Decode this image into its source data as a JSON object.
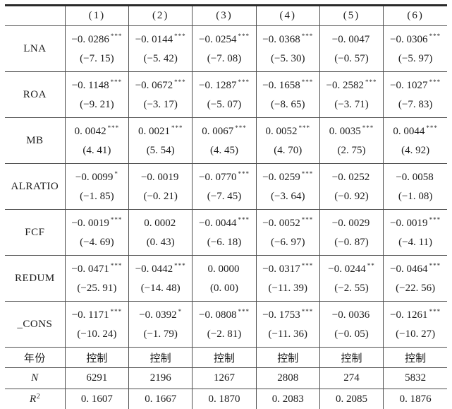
{
  "table": {
    "col_headers": [
      "",
      "(1)",
      "(2)",
      "(3)",
      "(4)",
      "(5)",
      "(6)"
    ],
    "coef_rows": [
      {
        "label": "LNA",
        "cells": [
          {
            "coef": "−0. 0286",
            "stars": "***",
            "t": "(−7. 15)"
          },
          {
            "coef": "−0. 0144",
            "stars": "***",
            "t": "(−5. 42)"
          },
          {
            "coef": "−0. 0254",
            "stars": "***",
            "t": "(−7. 08)"
          },
          {
            "coef": "−0. 0368",
            "stars": "***",
            "t": "(−5. 30)"
          },
          {
            "coef": "−0. 0047",
            "stars": "",
            "t": "(−0. 57)"
          },
          {
            "coef": "−0. 0306",
            "stars": "***",
            "t": "(−5. 97)"
          }
        ]
      },
      {
        "label": "ROA",
        "cells": [
          {
            "coef": "−0. 1148",
            "stars": "***",
            "t": "(−9. 21)"
          },
          {
            "coef": "−0. 0672",
            "stars": "***",
            "t": "(−3. 17)"
          },
          {
            "coef": "−0. 1287",
            "stars": "***",
            "t": "(−5. 07)"
          },
          {
            "coef": "−0. 1658",
            "stars": "***",
            "t": "(−8. 65)"
          },
          {
            "coef": "−0. 2582",
            "stars": "***",
            "t": "(−3. 71)"
          },
          {
            "coef": "−0. 1027",
            "stars": "***",
            "t": "(−7. 83)"
          }
        ]
      },
      {
        "label": "MB",
        "cells": [
          {
            "coef": "0. 0042",
            "stars": "***",
            "t": "(4. 41)"
          },
          {
            "coef": "0. 0021",
            "stars": "***",
            "t": "(5. 54)"
          },
          {
            "coef": "0. 0067",
            "stars": "***",
            "t": "(4. 45)"
          },
          {
            "coef": "0. 0052",
            "stars": "***",
            "t": "(4. 70)"
          },
          {
            "coef": "0. 0035",
            "stars": "***",
            "t": "(2. 75)"
          },
          {
            "coef": "0. 0044",
            "stars": "***",
            "t": "(4. 92)"
          }
        ]
      },
      {
        "label": "ALRATIO",
        "cells": [
          {
            "coef": "−0. 0099",
            "stars": "*",
            "t": "(−1. 85)"
          },
          {
            "coef": "−0. 0019",
            "stars": "",
            "t": "(−0. 21)"
          },
          {
            "coef": "−0. 0770",
            "stars": "***",
            "t": "(−7. 45)"
          },
          {
            "coef": "−0. 0259",
            "stars": "***",
            "t": "(−3. 64)"
          },
          {
            "coef": "−0. 0252",
            "stars": "",
            "t": "(−0. 92)"
          },
          {
            "coef": "−0. 0058",
            "stars": "",
            "t": "(−1. 08)"
          }
        ]
      },
      {
        "label": "FCF",
        "cells": [
          {
            "coef": "−0. 0019",
            "stars": "***",
            "t": "(−4. 69)"
          },
          {
            "coef": "0. 0002",
            "stars": "",
            "t": "(0. 43)"
          },
          {
            "coef": "−0. 0044",
            "stars": "***",
            "t": "(−6. 18)"
          },
          {
            "coef": "−0. 0052",
            "stars": "***",
            "t": "(−6. 97)"
          },
          {
            "coef": "−0. 0029",
            "stars": "",
            "t": "(−0. 87)"
          },
          {
            "coef": "−0. 0019",
            "stars": "***",
            "t": "(−4. 11)"
          }
        ]
      },
      {
        "label": "REDUM",
        "cells": [
          {
            "coef": "−0. 0471",
            "stars": "***",
            "t": "(−25. 91)"
          },
          {
            "coef": "−0. 0442",
            "stars": "***",
            "t": "(−14. 48)"
          },
          {
            "coef": "0. 0000",
            "stars": "",
            "t": "(0. 00)"
          },
          {
            "coef": "−0. 0317",
            "stars": "***",
            "t": "(−11. 39)"
          },
          {
            "coef": "−0. 0244",
            "stars": "**",
            "t": "(−2. 55)"
          },
          {
            "coef": "−0. 0464",
            "stars": "***",
            "t": "(−22. 56)"
          }
        ]
      },
      {
        "label": "_CONS",
        "cells": [
          {
            "coef": "−0. 1171",
            "stars": "***",
            "t": "(−10. 24)"
          },
          {
            "coef": "−0. 0392",
            "stars": "*",
            "t": "(−1. 79)"
          },
          {
            "coef": "−0. 0808",
            "stars": "***",
            "t": "(−2. 81)"
          },
          {
            "coef": "−0. 1753",
            "stars": "***",
            "t": "(−11. 36)"
          },
          {
            "coef": "−0. 0036",
            "stars": "",
            "t": "(−0. 05)"
          },
          {
            "coef": "−0. 1261",
            "stars": "***",
            "t": "(−10. 27)"
          }
        ]
      }
    ],
    "meta_rows": [
      {
        "label": "年份",
        "italic": false,
        "label_sup": "",
        "cells": [
          "控制",
          "控制",
          "控制",
          "控制",
          "控制",
          "控制"
        ]
      },
      {
        "label": "N",
        "italic": true,
        "label_sup": "",
        "cells": [
          "6291",
          "2196",
          "1267",
          "2808",
          "274",
          "5832"
        ]
      },
      {
        "label": "R",
        "italic": true,
        "label_sup": "2",
        "cells": [
          "0. 1607",
          "0. 1667",
          "0. 1870",
          "0. 2083",
          "0. 2085",
          "0. 1876"
        ]
      }
    ]
  },
  "chart_data": {
    "type": "table",
    "title": "",
    "columns": [
      "(1)",
      "(2)",
      "(3)",
      "(4)",
      "(5)",
      "(6)"
    ],
    "rows": {
      "LNA_coef": [
        -0.0286,
        -0.0144,
        -0.0254,
        -0.0368,
        -0.0047,
        -0.0306
      ],
      "LNA_t": [
        -7.15,
        -5.42,
        -7.08,
        -5.3,
        -0.57,
        -5.97
      ],
      "ROA_coef": [
        -0.1148,
        -0.0672,
        -0.1287,
        -0.1658,
        -0.2582,
        -0.1027
      ],
      "ROA_t": [
        -9.21,
        -3.17,
        -5.07,
        -8.65,
        -3.71,
        -7.83
      ],
      "MB_coef": [
        0.0042,
        0.0021,
        0.0067,
        0.0052,
        0.0035,
        0.0044
      ],
      "MB_t": [
        4.41,
        5.54,
        4.45,
        4.7,
        2.75,
        4.92
      ],
      "ALRATIO_coef": [
        -0.0099,
        -0.0019,
        -0.077,
        -0.0259,
        -0.0252,
        -0.0058
      ],
      "ALRATIO_t": [
        -1.85,
        -0.21,
        -7.45,
        -3.64,
        -0.92,
        -1.08
      ],
      "FCF_coef": [
        -0.0019,
        0.0002,
        -0.0044,
        -0.0052,
        -0.0029,
        -0.0019
      ],
      "FCF_t": [
        -4.69,
        0.43,
        -6.18,
        -6.97,
        -0.87,
        -4.11
      ],
      "REDUM_coef": [
        -0.0471,
        -0.0442,
        0.0,
        -0.0317,
        -0.0244,
        -0.0464
      ],
      "REDUM_t": [
        -25.91,
        -14.48,
        0.0,
        -11.39,
        -2.55,
        -22.56
      ],
      "CONS_coef": [
        -0.1171,
        -0.0392,
        -0.0808,
        -0.1753,
        -0.0036,
        -0.1261
      ],
      "CONS_t": [
        -10.24,
        -1.79,
        -2.81,
        -11.36,
        -0.05,
        -10.27
      ],
      "year_control": [
        "控制",
        "控制",
        "控制",
        "控制",
        "控制",
        "控制"
      ],
      "N": [
        6291,
        2196,
        1267,
        2808,
        274,
        5832
      ],
      "R2": [
        0.1607,
        0.1667,
        0.187,
        0.2083,
        0.2085,
        0.1876
      ]
    }
  }
}
